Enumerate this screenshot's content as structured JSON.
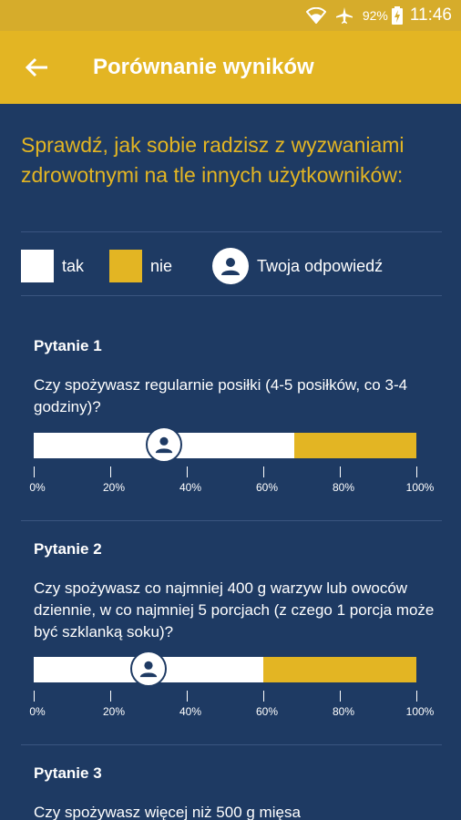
{
  "status_bar": {
    "battery": "92%",
    "time": "11:46"
  },
  "app_bar": {
    "title": "Porównanie wyników"
  },
  "intro": "Sprawdź, jak sobie radzisz z wyzwaniami zdrowotnymi na tle innych użytkowników:",
  "legend": {
    "yes": "tak",
    "no": "nie",
    "you": "Twoja odpowiedź"
  },
  "colors": {
    "yes": "#ffffff",
    "no": "#e3b523",
    "background": "#1e3a63",
    "header": "#e3b523"
  },
  "axis_ticks": [
    "0%",
    "20%",
    "40%",
    "60%",
    "80%",
    "100%"
  ],
  "questions": [
    {
      "title": "Pytanie 1",
      "text": "Czy spożywasz regularnie posiłki (4-5 posiłków, co 3-4 godziny)?",
      "yes_pct": 68,
      "your_marker_pct": 34
    },
    {
      "title": "Pytanie 2",
      "text": "Czy spożywasz co najmniej 400 g warzyw lub owoców dziennie, w co najmniej 5 porcjach (z czego 1 porcja może być szklanką soku)?",
      "yes_pct": 60,
      "your_marker_pct": 30
    },
    {
      "title": "Pytanie 3",
      "text": "Czy spożywasz więcej niż 500 g mięsa"
    }
  ]
}
